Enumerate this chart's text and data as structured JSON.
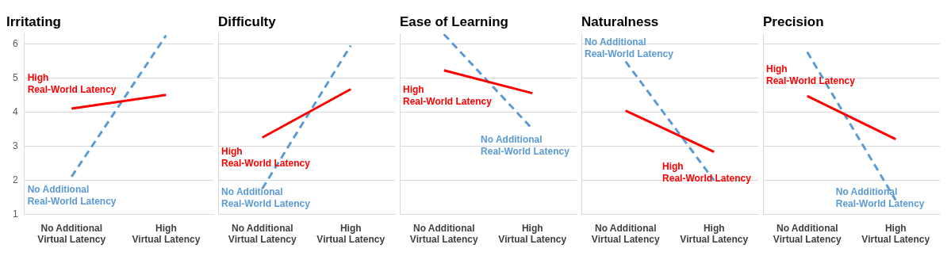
{
  "chart_data": [
    {
      "type": "line",
      "title": "Irritating",
      "categories": [
        "No Additional\nVirtual Latency",
        "High\nVirtual Latency"
      ],
      "ylim": [
        1,
        6.3
      ],
      "yticks": [
        1,
        2,
        3,
        4,
        5,
        6
      ],
      "grid": "y",
      "legend": false,
      "series": [
        {
          "name": "High\nReal-World Latency",
          "color": "#ff0000",
          "values": [
            4.1,
            4.5
          ],
          "line_style": "solid"
        },
        {
          "name": "No Additional\nReal-World Latency",
          "color": "#5b9bd5",
          "values": [
            2.1,
            6.25
          ],
          "line_style": "dashed"
        }
      ]
    },
    {
      "type": "line",
      "title": "Difficulty",
      "categories": [
        "No Additional\nVirtual Latency",
        "High\nVirtual Latency"
      ],
      "ylim": [
        1,
        6.3
      ],
      "yticks": [
        1,
        2,
        3,
        4,
        5,
        6
      ],
      "grid": "y",
      "legend": false,
      "tick_labels": "x",
      "series": [
        {
          "name": "High\nReal-World Latency",
          "color": "#ff0000",
          "values": [
            3.25,
            4.67
          ],
          "line_style": "solid"
        },
        {
          "name": "No Additional\nReal-World Latency",
          "color": "#5b9bd5",
          "values": [
            1.75,
            5.95
          ],
          "line_style": "dashed"
        }
      ]
    },
    {
      "type": "line",
      "title": "Ease of Learning",
      "categories": [
        "No Additional\nVirtual Latency",
        "High\nVirtual Latency"
      ],
      "ylim": [
        1,
        6.3
      ],
      "yticks": [
        1,
        2,
        3,
        4,
        5,
        6
      ],
      "grid": "y",
      "legend": false,
      "tick_labels": "x",
      "series": [
        {
          "name": "High\nReal-World Latency",
          "color": "#ff0000",
          "values": [
            5.22,
            4.55
          ],
          "line_style": "solid"
        },
        {
          "name": "No Additional\nReal-World Latency",
          "color": "#5b9bd5",
          "values": [
            6.28,
            3.5
          ],
          "line_style": "dashed"
        }
      ]
    },
    {
      "type": "line",
      "title": "Naturalness",
      "categories": [
        "No Additional\nVirtual Latency",
        "High\nVirtual Latency"
      ],
      "ylim": [
        1,
        6.3
      ],
      "yticks": [
        1,
        2,
        3,
        4,
        5,
        6
      ],
      "grid": "y",
      "legend": false,
      "tick_labels": "x",
      "series": [
        {
          "name": "High\nReal-World Latency",
          "color": "#ff0000",
          "values": [
            4.04,
            2.83
          ],
          "line_style": "solid"
        },
        {
          "name": "No Additional\nReal-World Latency",
          "color": "#5b9bd5",
          "values": [
            5.48,
            1.99
          ],
          "line_style": "dashed"
        }
      ]
    },
    {
      "type": "line",
      "title": "Precision",
      "categories": [
        "No Additional\nVirtual Latency",
        "High\nVirtual Latency"
      ],
      "ylim": [
        1,
        6.3
      ],
      "yticks": [
        1,
        2,
        3,
        4,
        5,
        6
      ],
      "grid": "y",
      "legend": false,
      "tick_labels": "x",
      "series": [
        {
          "name": "High\nReal-World Latency",
          "color": "#ff0000",
          "values": [
            4.47,
            3.2
          ],
          "line_style": "solid"
        },
        {
          "name": "No Additional\nReal-World Latency",
          "color": "#5b9bd5",
          "values": [
            5.76,
            1.41
          ],
          "line_style": "dashed"
        }
      ]
    }
  ]
}
